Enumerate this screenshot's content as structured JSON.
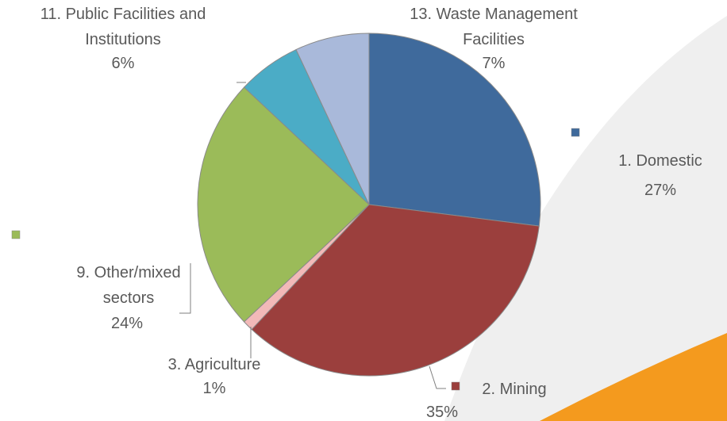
{
  "chart_data": {
    "type": "pie",
    "categories": [
      "1. Domestic",
      "2. Mining",
      "3. Agriculture",
      "9. Other/mixed sectors",
      "11. Public Facilities and Institutions",
      "13. Waste Management Facilities"
    ],
    "values": [
      27,
      35,
      1,
      24,
      6,
      7
    ],
    "value_labels": [
      "27%",
      "35%",
      "1%",
      "24%",
      "6%",
      "7%"
    ],
    "colors": [
      "#3f6a9c",
      "#9b3f3d",
      "#f2b9b8",
      "#9bbb59",
      "#4bacc6",
      "#a9b9da"
    ]
  }
}
